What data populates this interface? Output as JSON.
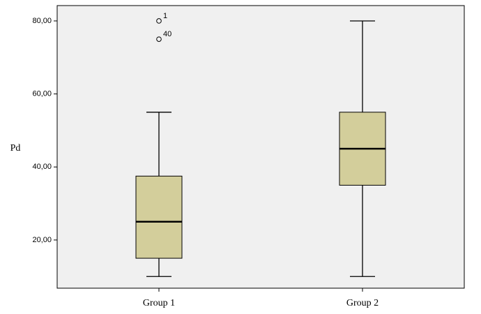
{
  "chart_data": {
    "type": "box",
    "ylabel": "Pd",
    "categories": [
      "Group 1",
      "Group 2"
    ],
    "boxes": [
      {
        "min": 10,
        "q1": 15,
        "median": 25,
        "q3": 37.5,
        "max": 55,
        "outliers": [
          {
            "value": 80,
            "label": "1"
          },
          {
            "value": 75,
            "label": "40"
          }
        ]
      },
      {
        "min": 10,
        "q1": 35,
        "median": 45,
        "q3": 55,
        "max": 80,
        "outliers": []
      }
    ],
    "box_color": "#d3ce9b",
    "plot_background": "#f0f0f0",
    "ylim": [
      6.8,
      84.2
    ],
    "yticks": [
      {
        "value": 20,
        "label": "20,00"
      },
      {
        "value": 40,
        "label": "40,00"
      },
      {
        "value": 60,
        "label": "60,00"
      },
      {
        "value": 80,
        "label": "80,00"
      }
    ]
  }
}
